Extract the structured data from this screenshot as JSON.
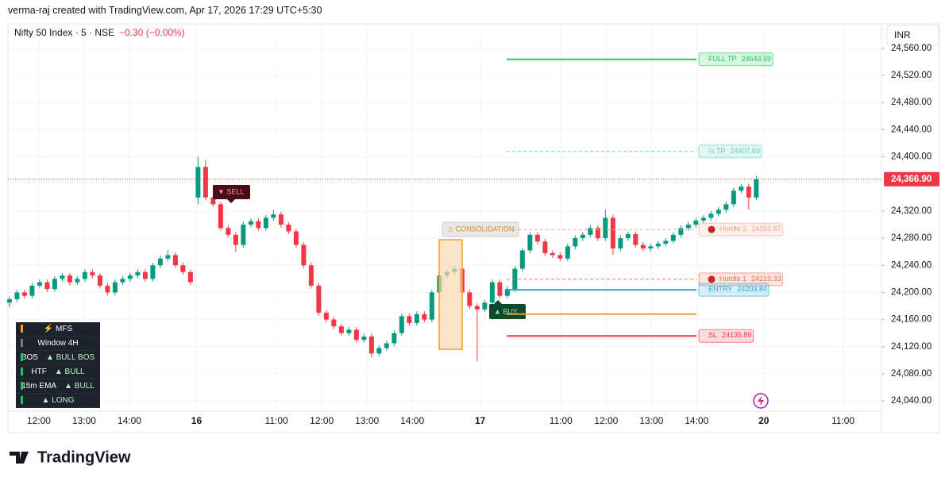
{
  "header": {
    "credit": "verma-raj created with TradingView.com, Apr 17, 2026 17:29 UTC+5:30",
    "symbol": "Nifty 50 Index · 5 · NSE",
    "change": "−0.30 (−0.00%)",
    "currency": "INR"
  },
  "chart_data": {
    "type": "candlestick",
    "up_color": "#089981",
    "down_color": "#f23645",
    "grid": true,
    "candles": [
      [
        24185,
        24194,
        24178,
        24190
      ],
      [
        24190,
        24204,
        24186,
        24200
      ],
      [
        24200,
        24204,
        24191,
        24195
      ],
      [
        24195,
        24214,
        24191,
        24210
      ],
      [
        24210,
        24219,
        24206,
        24215
      ],
      [
        24215,
        24219,
        24201,
        24205
      ],
      [
        24205,
        24224,
        24201,
        24220
      ],
      [
        24220,
        24229,
        24216,
        24225
      ],
      [
        24225,
        24229,
        24211,
        24215
      ],
      [
        24215,
        24224,
        24211,
        24220
      ],
      [
        24220,
        24234,
        24216,
        24230
      ],
      [
        24230,
        24234,
        24221,
        24225
      ],
      [
        24225,
        24229,
        24206,
        24210
      ],
      [
        24210,
        24214,
        24196,
        24200
      ],
      [
        24200,
        24219,
        24196,
        24215
      ],
      [
        24215,
        24224,
        24211,
        24220
      ],
      [
        24220,
        24229,
        24216,
        24225
      ],
      [
        24225,
        24234,
        24221,
        24230
      ],
      [
        24230,
        24234,
        24216,
        24220
      ],
      [
        24220,
        24244,
        24216,
        24240
      ],
      [
        24240,
        24254,
        24236,
        24250
      ],
      [
        24250,
        24262,
        24246,
        24255
      ],
      [
        24255,
        24259,
        24236,
        24240
      ],
      [
        24240,
        24244,
        24226,
        24230
      ],
      [
        24230,
        24234,
        24211,
        24215
      ],
      [
        24340,
        24400,
        24330,
        24385
      ],
      [
        24385,
        24395,
        24336,
        24340
      ],
      [
        24340,
        24344,
        24326,
        24330
      ],
      [
        24330,
        24334,
        24291,
        24295
      ],
      [
        24295,
        24299,
        24281,
        24285
      ],
      [
        24285,
        24289,
        24260,
        24270
      ],
      [
        24270,
        24304,
        24266,
        24300
      ],
      [
        24300,
        24309,
        24296,
        24305
      ],
      [
        24305,
        24309,
        24291,
        24295
      ],
      [
        24295,
        24314,
        24291,
        24310
      ],
      [
        24310,
        24322,
        24306,
        24315
      ],
      [
        24315,
        24319,
        24296,
        24300
      ],
      [
        24300,
        24304,
        24286,
        24290
      ],
      [
        24290,
        24294,
        24266,
        24270
      ],
      [
        24270,
        24274,
        24236,
        24240
      ],
      [
        24240,
        24244,
        24206,
        24210
      ],
      [
        24210,
        24214,
        24166,
        24170
      ],
      [
        24170,
        24174,
        24156,
        24160
      ],
      [
        24160,
        24164,
        24146,
        24150
      ],
      [
        24150,
        24154,
        24136,
        24140
      ],
      [
        24140,
        24149,
        24136,
        24145
      ],
      [
        24145,
        24149,
        24126,
        24130
      ],
      [
        24130,
        24139,
        24126,
        24135
      ],
      [
        24135,
        24139,
        24104,
        24110
      ],
      [
        24110,
        24122,
        24106,
        24118
      ],
      [
        24118,
        24129,
        24114,
        24125
      ],
      [
        24125,
        24144,
        24121,
        24140
      ],
      [
        24140,
        24169,
        24136,
        24165
      ],
      [
        24165,
        24169,
        24151,
        24155
      ],
      [
        24155,
        24172,
        24151,
        24168
      ],
      [
        24168,
        24172,
        24156,
        24160
      ],
      [
        24160,
        24204,
        24156,
        24200
      ],
      [
        24200,
        24229,
        24196,
        24225
      ],
      [
        24225,
        24234,
        24221,
        24230
      ],
      [
        24230,
        24240,
        24226,
        24235
      ],
      [
        24235,
        24239,
        24196,
        24200
      ],
      [
        24200,
        24204,
        24176,
        24180
      ],
      [
        24180,
        24184,
        24098,
        24175
      ],
      [
        24175,
        24189,
        24171,
        24185
      ],
      [
        24185,
        24219,
        24181,
        24215
      ],
      [
        24215,
        24219,
        24191,
        24195
      ],
      [
        24195,
        24209,
        24191,
        24205
      ],
      [
        24205,
        24239,
        24201,
        24235
      ],
      [
        24235,
        24266,
        24231,
        24262
      ],
      [
        24262,
        24289,
        24258,
        24285
      ],
      [
        24285,
        24289,
        24271,
        24275
      ],
      [
        24275,
        24279,
        24254,
        24258
      ],
      [
        24258,
        24262,
        24251,
        24255
      ],
      [
        24255,
        24259,
        24246,
        24250
      ],
      [
        24250,
        24272,
        24246,
        24268
      ],
      [
        24268,
        24284,
        24264,
        24280
      ],
      [
        24280,
        24289,
        24276,
        24285
      ],
      [
        24285,
        24299,
        24281,
        24295
      ],
      [
        24295,
        24299,
        24276,
        24280
      ],
      [
        24280,
        24322,
        24276,
        24310
      ],
      [
        24310,
        24314,
        24255,
        24265
      ],
      [
        24265,
        24284,
        24261,
        24280
      ],
      [
        24280,
        24290,
        24276,
        24286
      ],
      [
        24286,
        24290,
        24266,
        24270
      ],
      [
        24270,
        24274,
        24261,
        24265
      ],
      [
        24265,
        24272,
        24261,
        24268
      ],
      [
        24268,
        24276,
        24264,
        24272
      ],
      [
        24272,
        24280,
        24268,
        24276
      ],
      [
        24276,
        24289,
        24272,
        24285
      ],
      [
        24285,
        24299,
        24281,
        24295
      ],
      [
        24295,
        24304,
        24291,
        24300
      ],
      [
        24300,
        24310,
        24296,
        24306
      ],
      [
        24306,
        24314,
        24302,
        24310
      ],
      [
        24310,
        24320,
        24306,
        24316
      ],
      [
        24316,
        24326,
        24312,
        24322
      ],
      [
        24322,
        24334,
        24318,
        24330
      ],
      [
        24330,
        24354,
        24326,
        24350
      ],
      [
        24350,
        24360,
        24346,
        24356
      ],
      [
        24356,
        24360,
        24322,
        24340
      ],
      [
        24340,
        24372,
        24336,
        24366.9
      ]
    ],
    "xlim": [
      -0.2,
      115.6
    ],
    "xticks": [
      {
        "value": 3.9,
        "label": "12:00"
      },
      {
        "value": 9.9,
        "label": "13:00"
      },
      {
        "value": 15.9,
        "label": "14:00"
      },
      {
        "value": 24.8,
        "label": "16"
      },
      {
        "value": 35.4,
        "label": "11:00"
      },
      {
        "value": 41.4,
        "label": "12:00"
      },
      {
        "value": 47.4,
        "label": "13:00"
      },
      {
        "value": 53.4,
        "label": "14:00"
      },
      {
        "value": 62.4,
        "label": "17"
      },
      {
        "value": 73.1,
        "label": "11:00"
      },
      {
        "value": 79.1,
        "label": "12:00"
      },
      {
        "value": 85.1,
        "label": "13:00"
      },
      {
        "value": 91.1,
        "label": "14:00"
      },
      {
        "value": 100,
        "label": "20"
      },
      {
        "value": 110.5,
        "label": "11:00"
      }
    ],
    "ylim": [
      24025,
      24596
    ],
    "yticks": [
      {
        "value": 24040,
        "label": "24,040.00"
      },
      {
        "value": 24080,
        "label": "24,080.00"
      },
      {
        "value": 24120,
        "label": "24,120.00"
      },
      {
        "value": 24160,
        "label": "24,160.00"
      },
      {
        "value": 24200,
        "label": "24,200.00"
      },
      {
        "value": 24240,
        "label": "24,240.00"
      },
      {
        "value": 24280,
        "label": "24,280.00"
      },
      {
        "value": 24320,
        "label": "24,320.00"
      },
      {
        "value": 24400,
        "label": "24,400.00"
      },
      {
        "value": 24440,
        "label": "24,440.00"
      },
      {
        "value": 24480,
        "label": "24,480.00"
      },
      {
        "value": 24520,
        "label": "24,520.00"
      },
      {
        "value": 24560,
        "label": "24,560.00"
      }
    ],
    "last_price": {
      "value": 24366.9,
      "label": "24,366.90"
    },
    "levels": [
      {
        "label": "FULL TP",
        "value": 24543.59,
        "color": "#22c55e",
        "style": "solid"
      },
      {
        "label": "½ TP",
        "value": 24407.69,
        "color": "#5fd3b4",
        "style": "dashed"
      },
      {
        "label": "Hurdle 2",
        "value": 24292.87,
        "color": "#f4a58a",
        "style": "dashed"
      },
      {
        "label": "Hurdle 1",
        "value": 24219.33,
        "color": "#f0754f",
        "style": "dashed"
      },
      {
        "label": "ENTRY",
        "value": 24203.84,
        "color": "#29a8e0",
        "style": "solid"
      },
      {
        "value": 24168,
        "color": "#e7a23b",
        "style": "solid"
      },
      {
        "label": "SL",
        "value": 24135.89,
        "color": "#f23645",
        "style": "solid"
      }
    ],
    "sell_signal": "▼ SELL",
    "buy_signal": "▲ BUY",
    "zone_label": "⚠ CONSOLIDATION"
  },
  "table": {
    "rows": [
      [
        "⚡ MFS"
      ],
      [
        "Window 4H"
      ],
      [
        "BOS",
        "▲ BULL BOS"
      ],
      [
        "HTF",
        "▲ BULL"
      ],
      [
        "15m EMA",
        "▲ BULL"
      ],
      [
        "▲ LONG"
      ]
    ]
  },
  "footer": {
    "brand": "TradingView"
  }
}
